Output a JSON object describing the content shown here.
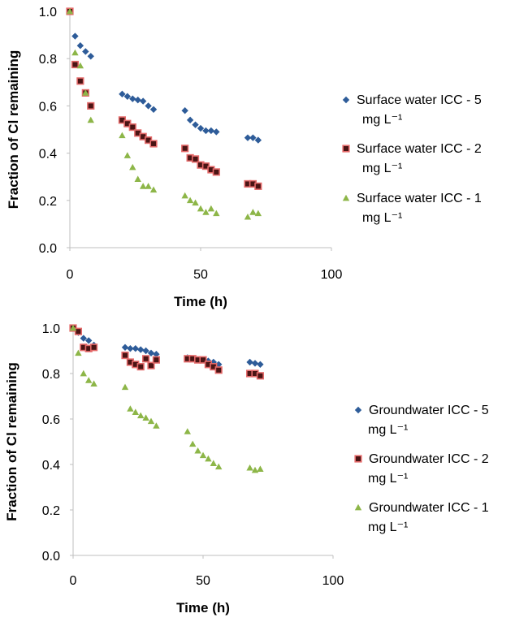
{
  "chart_data": [
    {
      "type": "scatter",
      "xlabel": "Time (h)",
      "ylabel": "Fraction of Cl remaining",
      "xlim": [
        0,
        100
      ],
      "ylim": [
        0,
        1
      ],
      "xticks": [
        "0",
        "50",
        "100"
      ],
      "yticks": [
        "0.0",
        "0.2",
        "0.4",
        "0.6",
        "0.8",
        "1.0"
      ],
      "grid": false,
      "legend_position": "right",
      "series": [
        {
          "name": "Surface water ICC - 5",
          "name_unit": "mg L⁻¹",
          "marker": "diamond",
          "color": "#2e5c99",
          "points": [
            [
              0,
              1.0
            ],
            [
              2,
              0.895
            ],
            [
              4,
              0.855
            ],
            [
              6,
              0.83
            ],
            [
              8,
              0.81
            ],
            [
              20,
              0.65
            ],
            [
              22,
              0.64
            ],
            [
              24,
              0.63
            ],
            [
              26,
              0.625
            ],
            [
              28,
              0.62
            ],
            [
              30,
              0.6
            ],
            [
              32,
              0.585
            ],
            [
              44,
              0.58
            ],
            [
              46,
              0.54
            ],
            [
              48,
              0.52
            ],
            [
              50,
              0.505
            ],
            [
              52,
              0.495
            ],
            [
              54,
              0.495
            ],
            [
              56,
              0.49
            ],
            [
              68,
              0.465
            ],
            [
              70,
              0.465
            ],
            [
              72,
              0.455
            ]
          ]
        },
        {
          "name": "Surface water ICC - 2",
          "name_unit": "mg L⁻¹",
          "marker": "square",
          "color": "#4a1414",
          "edge": "#e46a6a",
          "points": [
            [
              0,
              1.0
            ],
            [
              2,
              0.775
            ],
            [
              4,
              0.705
            ],
            [
              6,
              0.655
            ],
            [
              8,
              0.6
            ],
            [
              20,
              0.54
            ],
            [
              22,
              0.525
            ],
            [
              24,
              0.51
            ],
            [
              26,
              0.485
            ],
            [
              28,
              0.47
            ],
            [
              30,
              0.455
            ],
            [
              32,
              0.44
            ],
            [
              44,
              0.42
            ],
            [
              46,
              0.38
            ],
            [
              48,
              0.375
            ],
            [
              50,
              0.35
            ],
            [
              52,
              0.345
            ],
            [
              54,
              0.33
            ],
            [
              56,
              0.32
            ],
            [
              68,
              0.27
            ],
            [
              70,
              0.27
            ],
            [
              72,
              0.26
            ]
          ]
        },
        {
          "name": "Surface water ICC - 1",
          "name_unit": "mg L⁻¹",
          "marker": "triangle",
          "color": "#8db648",
          "points": [
            [
              0,
              1.0
            ],
            [
              2,
              0.825
            ],
            [
              4,
              0.77
            ],
            [
              6,
              0.655
            ],
            [
              8,
              0.54
            ],
            [
              20,
              0.475
            ],
            [
              22,
              0.39
            ],
            [
              24,
              0.34
            ],
            [
              26,
              0.29
            ],
            [
              28,
              0.26
            ],
            [
              30,
              0.26
            ],
            [
              32,
              0.245
            ],
            [
              44,
              0.22
            ],
            [
              46,
              0.2
            ],
            [
              48,
              0.19
            ],
            [
              50,
              0.165
            ],
            [
              52,
              0.15
            ],
            [
              54,
              0.165
            ],
            [
              56,
              0.145
            ],
            [
              68,
              0.13
            ],
            [
              70,
              0.15
            ],
            [
              72,
              0.145
            ]
          ]
        }
      ]
    },
    {
      "type": "scatter",
      "xlabel": "Time (h)",
      "ylabel": "Fraction of Cl remaining",
      "xlim": [
        0,
        100
      ],
      "ylim": [
        0,
        1
      ],
      "xticks": [
        "0",
        "50",
        "100"
      ],
      "yticks": [
        "0.0",
        "0.2",
        "0.4",
        "0.6",
        "0.8",
        "1.0"
      ],
      "grid": false,
      "legend_position": "right",
      "series": [
        {
          "name": "Groundwater  ICC - 5",
          "name_unit": "mg L⁻¹",
          "marker": "diamond",
          "color": "#2e5c99",
          "points": [
            [
              0,
              1.0
            ],
            [
              2,
              0.98
            ],
            [
              4,
              0.955
            ],
            [
              6,
              0.945
            ],
            [
              8,
              0.925
            ],
            [
              20,
              0.915
            ],
            [
              22,
              0.91
            ],
            [
              24,
              0.91
            ],
            [
              26,
              0.905
            ],
            [
              28,
              0.9
            ],
            [
              30,
              0.89
            ],
            [
              32,
              0.885
            ],
            [
              44,
              0.87
            ],
            [
              46,
              0.865
            ],
            [
              48,
              0.86
            ],
            [
              50,
              0.86
            ],
            [
              52,
              0.855
            ],
            [
              54,
              0.85
            ],
            [
              56,
              0.84
            ],
            [
              68,
              0.85
            ],
            [
              70,
              0.845
            ],
            [
              72,
              0.84
            ]
          ]
        },
        {
          "name": "Groundwater  ICC - 2",
          "name_unit": "mg L⁻¹",
          "marker": "square",
          "color": "#4a1414",
          "edge": "#e46a6a",
          "points": [
            [
              0,
              1.0
            ],
            [
              2,
              0.985
            ],
            [
              4,
              0.915
            ],
            [
              6,
              0.91
            ],
            [
              8,
              0.915
            ],
            [
              20,
              0.88
            ],
            [
              22,
              0.85
            ],
            [
              24,
              0.84
            ],
            [
              26,
              0.83
            ],
            [
              28,
              0.865
            ],
            [
              30,
              0.835
            ],
            [
              32,
              0.86
            ],
            [
              44,
              0.865
            ],
            [
              46,
              0.865
            ],
            [
              48,
              0.86
            ],
            [
              50,
              0.86
            ],
            [
              52,
              0.84
            ],
            [
              54,
              0.83
            ],
            [
              56,
              0.815
            ],
            [
              68,
              0.8
            ],
            [
              70,
              0.8
            ],
            [
              72,
              0.79
            ]
          ]
        },
        {
          "name": "Groundwater  ICC - 1",
          "name_unit": "mg L⁻¹",
          "marker": "triangle",
          "color": "#8db648",
          "points": [
            [
              0,
              1.0
            ],
            [
              2,
              0.89
            ],
            [
              4,
              0.8
            ],
            [
              6,
              0.77
            ],
            [
              8,
              0.755
            ],
            [
              20,
              0.74
            ],
            [
              22,
              0.645
            ],
            [
              24,
              0.63
            ],
            [
              26,
              0.615
            ],
            [
              28,
              0.605
            ],
            [
              30,
              0.59
            ],
            [
              32,
              0.57
            ],
            [
              44,
              0.545
            ],
            [
              46,
              0.49
            ],
            [
              48,
              0.46
            ],
            [
              50,
              0.44
            ],
            [
              52,
              0.425
            ],
            [
              54,
              0.405
            ],
            [
              56,
              0.39
            ],
            [
              68,
              0.385
            ],
            [
              70,
              0.375
            ],
            [
              72,
              0.38
            ]
          ]
        }
      ]
    }
  ]
}
